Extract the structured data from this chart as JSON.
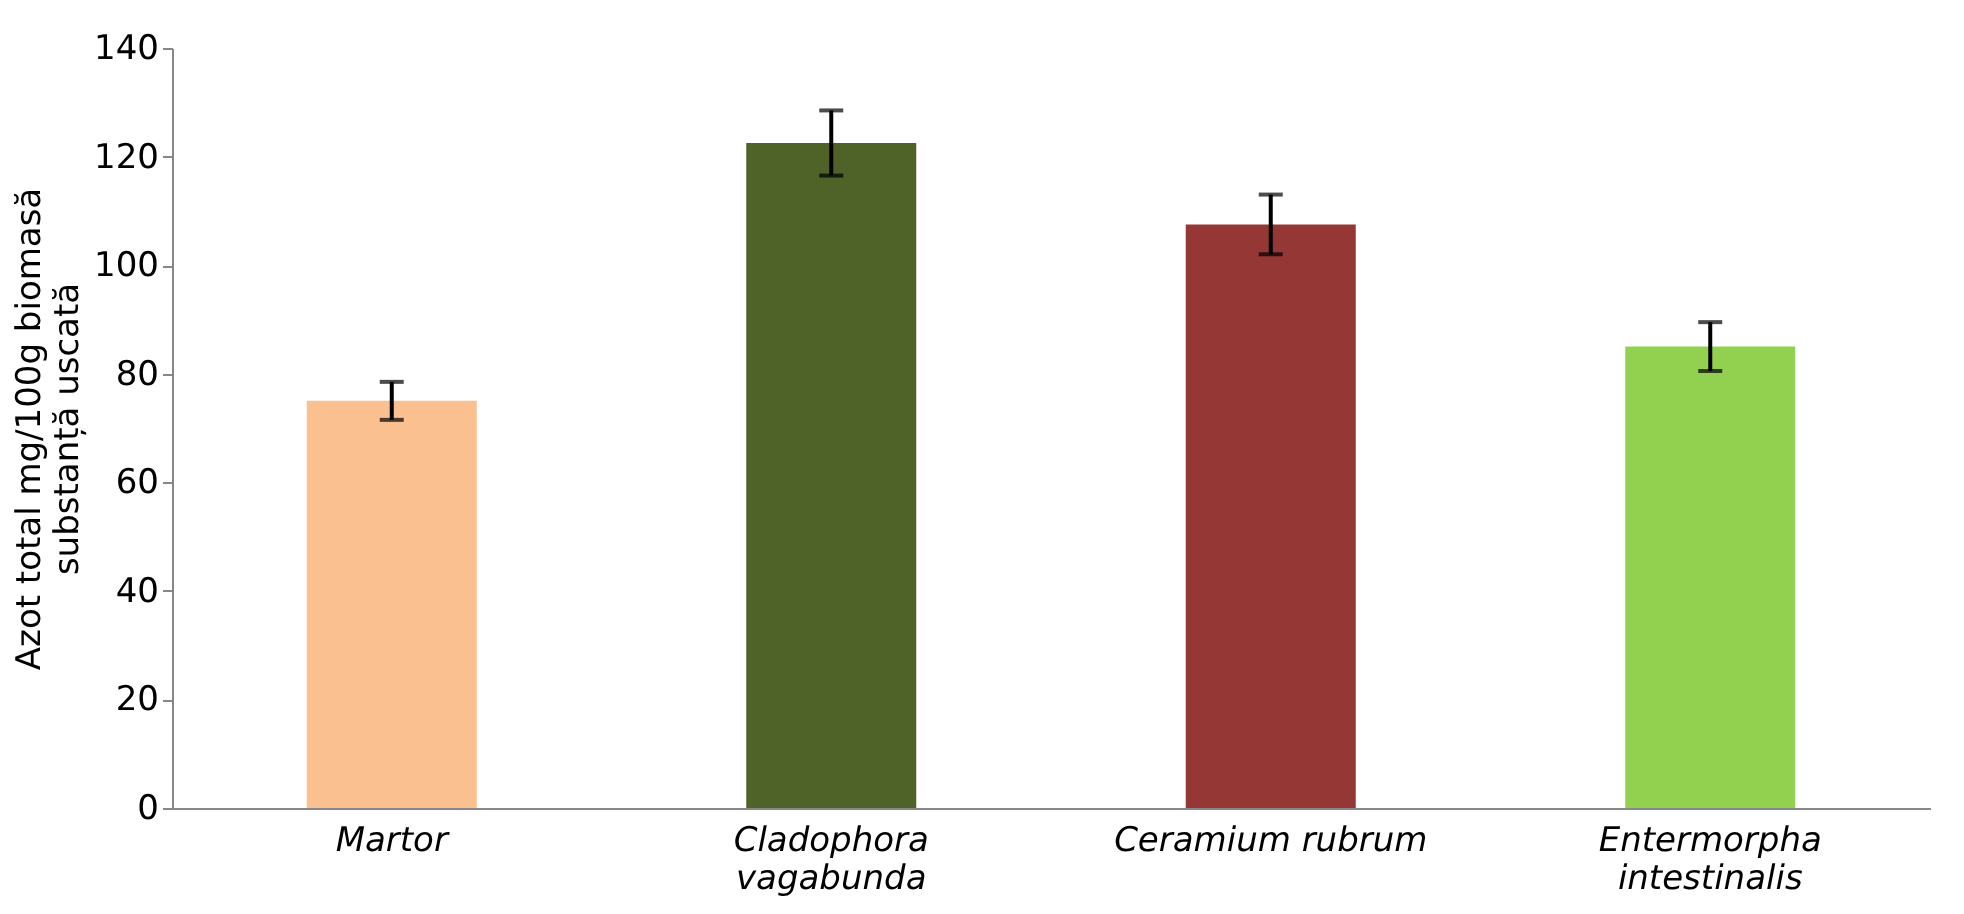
{
  "chart_data": {
    "type": "bar",
    "ylabel": "Azot total mg/100g biomasă substanță uscată",
    "categories": [
      "Martor",
      "Cladophora vagabunda",
      "Ceramium rubrum",
      "Entermorpha intestinalis"
    ],
    "values": [
      75,
      122.5,
      107.5,
      85
    ],
    "errors": [
      3.5,
      6,
      5.5,
      4.5
    ],
    "colors": [
      "#fac090",
      "#4f6228",
      "#953735",
      "#92d050"
    ],
    "ylim": [
      0,
      140
    ],
    "yticks": [
      0,
      20,
      40,
      60,
      80,
      100,
      120,
      140
    ],
    "grid": false
  }
}
